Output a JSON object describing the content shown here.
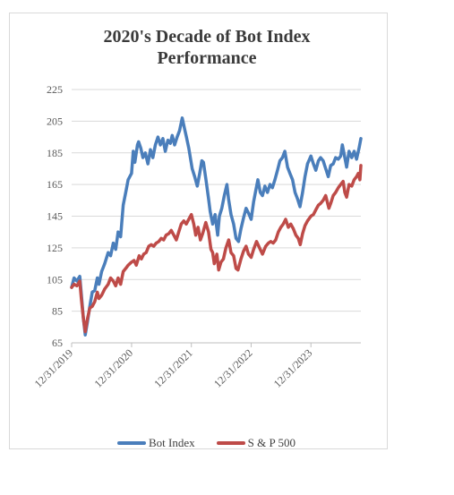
{
  "chart_data": {
    "type": "line",
    "title": "2020's Decade of Bot Index Performance",
    "title_lines": [
      "2020's Decade of Bot Index",
      "Performance"
    ],
    "xlabel": "",
    "ylabel": "",
    "y_ticks": [
      65,
      85,
      105,
      125,
      145,
      165,
      185,
      205,
      225
    ],
    "ylim": [
      65,
      225
    ],
    "x_ticks": [
      "2019-12-31",
      "2020-12-31",
      "2021-12-31",
      "2022-12-31",
      "2023-12-31"
    ],
    "x_tick_labels": [
      "12/31/2019",
      "12/31/2020",
      "12/31/2021",
      "12/31/2022",
      "12/31/2023"
    ],
    "xlim": [
      "2019-12-31",
      "2024-10-31"
    ],
    "grid": true,
    "legend_position": "bottom",
    "series": [
      {
        "name": "Bot Index",
        "color": "#4a7ebb",
        "points": [
          [
            "2019-12-31",
            100
          ],
          [
            "2020-01-15",
            106
          ],
          [
            "2020-02-01",
            104
          ],
          [
            "2020-02-19",
            107
          ],
          [
            "2020-02-28",
            96
          ],
          [
            "2020-03-12",
            80
          ],
          [
            "2020-03-23",
            70
          ],
          [
            "2020-04-05",
            78
          ],
          [
            "2020-04-20",
            88
          ],
          [
            "2020-05-05",
            97
          ],
          [
            "2020-05-20",
            98
          ],
          [
            "2020-06-05",
            106
          ],
          [
            "2020-06-15",
            102
          ],
          [
            "2020-07-01",
            110
          ],
          [
            "2020-07-20",
            115
          ],
          [
            "2020-08-10",
            122
          ],
          [
            "2020-08-25",
            120
          ],
          [
            "2020-09-10",
            128
          ],
          [
            "2020-09-25",
            124
          ],
          [
            "2020-10-10",
            135
          ],
          [
            "2020-10-25",
            132
          ],
          [
            "2020-11-10",
            152
          ],
          [
            "2020-11-25",
            160
          ],
          [
            "2020-12-10",
            168
          ],
          [
            "2020-12-31",
            172
          ],
          [
            "2021-01-10",
            186
          ],
          [
            "2021-01-20",
            179
          ],
          [
            "2021-02-05",
            190
          ],
          [
            "2021-02-12",
            192
          ],
          [
            "2021-02-25",
            188
          ],
          [
            "2021-03-10",
            182
          ],
          [
            "2021-03-25",
            185
          ],
          [
            "2021-04-10",
            178
          ],
          [
            "2021-04-25",
            187
          ],
          [
            "2021-05-10",
            182
          ],
          [
            "2021-05-25",
            190
          ],
          [
            "2021-06-10",
            195
          ],
          [
            "2021-06-25",
            190
          ],
          [
            "2021-07-10",
            194
          ],
          [
            "2021-07-25",
            186
          ],
          [
            "2021-08-10",
            193
          ],
          [
            "2021-08-25",
            191
          ],
          [
            "2021-09-05",
            196
          ],
          [
            "2021-09-20",
            190
          ],
          [
            "2021-10-05",
            195
          ],
          [
            "2021-10-20",
            199
          ],
          [
            "2021-11-05",
            207
          ],
          [
            "2021-11-20",
            200
          ],
          [
            "2021-12-01",
            195
          ],
          [
            "2021-12-15",
            188
          ],
          [
            "2022-01-05",
            175
          ],
          [
            "2022-01-20",
            170
          ],
          [
            "2022-02-05",
            164
          ],
          [
            "2022-02-20",
            172
          ],
          [
            "2022-03-05",
            180
          ],
          [
            "2022-03-15",
            179
          ],
          [
            "2022-03-30",
            168
          ],
          [
            "2022-04-15",
            156
          ],
          [
            "2022-04-25",
            148
          ],
          [
            "2022-05-10",
            140
          ],
          [
            "2022-05-25",
            146
          ],
          [
            "2022-06-10",
            133
          ],
          [
            "2022-06-20",
            145
          ],
          [
            "2022-07-05",
            150
          ],
          [
            "2022-07-20",
            158
          ],
          [
            "2022-08-05",
            165
          ],
          [
            "2022-08-15",
            156
          ],
          [
            "2022-08-30",
            146
          ],
          [
            "2022-09-15",
            140
          ],
          [
            "2022-09-30",
            131
          ],
          [
            "2022-10-15",
            129
          ],
          [
            "2022-10-30",
            137
          ],
          [
            "2022-11-15",
            144
          ],
          [
            "2022-11-30",
            150
          ],
          [
            "2022-12-15",
            147
          ],
          [
            "2022-12-31",
            143
          ],
          [
            "2023-01-15",
            154
          ],
          [
            "2023-01-30",
            162
          ],
          [
            "2023-02-10",
            168
          ],
          [
            "2023-02-25",
            160
          ],
          [
            "2023-03-10",
            158
          ],
          [
            "2023-03-25",
            164
          ],
          [
            "2023-04-10",
            160
          ],
          [
            "2023-04-25",
            165
          ],
          [
            "2023-05-10",
            163
          ],
          [
            "2023-05-25",
            168
          ],
          [
            "2023-06-10",
            174
          ],
          [
            "2023-06-25",
            180
          ],
          [
            "2023-07-10",
            182
          ],
          [
            "2023-07-25",
            186
          ],
          [
            "2023-08-10",
            176
          ],
          [
            "2023-08-25",
            172
          ],
          [
            "2023-09-10",
            168
          ],
          [
            "2023-09-25",
            160
          ],
          [
            "2023-10-10",
            156
          ],
          [
            "2023-10-25",
            151
          ],
          [
            "2023-11-10",
            160
          ],
          [
            "2023-11-25",
            170
          ],
          [
            "2023-12-10",
            178
          ],
          [
            "2023-12-31",
            183
          ],
          [
            "2024-01-15",
            178
          ],
          [
            "2024-01-30",
            174
          ],
          [
            "2024-02-15",
            180
          ],
          [
            "2024-02-28",
            182
          ],
          [
            "2024-03-15",
            180
          ],
          [
            "2024-03-30",
            175
          ],
          [
            "2024-04-15",
            170
          ],
          [
            "2024-04-30",
            177
          ],
          [
            "2024-05-15",
            178
          ],
          [
            "2024-05-30",
            182
          ],
          [
            "2024-06-15",
            181
          ],
          [
            "2024-06-30",
            183
          ],
          [
            "2024-07-10",
            190
          ],
          [
            "2024-07-25",
            182
          ],
          [
            "2024-08-05",
            176
          ],
          [
            "2024-08-20",
            186
          ],
          [
            "2024-09-05",
            182
          ],
          [
            "2024-09-20",
            186
          ],
          [
            "2024-10-05",
            181
          ],
          [
            "2024-10-20",
            188
          ],
          [
            "2024-10-31",
            194
          ]
        ]
      },
      {
        "name": "S & P 500",
        "color": "#be4b48",
        "points": [
          [
            "2019-12-31",
            100
          ],
          [
            "2020-01-15",
            102
          ],
          [
            "2020-02-01",
            101
          ],
          [
            "2020-02-19",
            104
          ],
          [
            "2020-02-28",
            93
          ],
          [
            "2020-03-12",
            80
          ],
          [
            "2020-03-23",
            72
          ],
          [
            "2020-04-05",
            80
          ],
          [
            "2020-04-20",
            87
          ],
          [
            "2020-05-05",
            88
          ],
          [
            "2020-05-20",
            91
          ],
          [
            "2020-06-05",
            97
          ],
          [
            "2020-06-15",
            93
          ],
          [
            "2020-07-01",
            95
          ],
          [
            "2020-07-20",
            99
          ],
          [
            "2020-08-10",
            102
          ],
          [
            "2020-08-25",
            106
          ],
          [
            "2020-09-10",
            104
          ],
          [
            "2020-09-25",
            101
          ],
          [
            "2020-10-10",
            106
          ],
          [
            "2020-10-25",
            102
          ],
          [
            "2020-11-10",
            110
          ],
          [
            "2020-11-25",
            112
          ],
          [
            "2020-12-10",
            114
          ],
          [
            "2020-12-31",
            116
          ],
          [
            "2021-01-15",
            117
          ],
          [
            "2021-01-29",
            114
          ],
          [
            "2021-02-15",
            120
          ],
          [
            "2021-03-01",
            118
          ],
          [
            "2021-03-15",
            121
          ],
          [
            "2021-03-30",
            122
          ],
          [
            "2021-04-15",
            126
          ],
          [
            "2021-04-30",
            127
          ],
          [
            "2021-05-15",
            126
          ],
          [
            "2021-05-30",
            128
          ],
          [
            "2021-06-15",
            129
          ],
          [
            "2021-06-30",
            131
          ],
          [
            "2021-07-15",
            130
          ],
          [
            "2021-07-30",
            133
          ],
          [
            "2021-08-15",
            134
          ],
          [
            "2021-08-30",
            136
          ],
          [
            "2021-09-15",
            133
          ],
          [
            "2021-09-30",
            130
          ],
          [
            "2021-10-15",
            135
          ],
          [
            "2021-10-30",
            140
          ],
          [
            "2021-11-15",
            142
          ],
          [
            "2021-11-30",
            140
          ],
          [
            "2021-12-15",
            143
          ],
          [
            "2021-12-31",
            146
          ],
          [
            "2022-01-15",
            140
          ],
          [
            "2022-01-27",
            133
          ],
          [
            "2022-02-10",
            138
          ],
          [
            "2022-02-24",
            130
          ],
          [
            "2022-03-10",
            134
          ],
          [
            "2022-03-29",
            141
          ],
          [
            "2022-04-15",
            135
          ],
          [
            "2022-04-30",
            124
          ],
          [
            "2022-05-10",
            122
          ],
          [
            "2022-05-20",
            115
          ],
          [
            "2022-06-05",
            121
          ],
          [
            "2022-06-16",
            111
          ],
          [
            "2022-06-30",
            116
          ],
          [
            "2022-07-15",
            118
          ],
          [
            "2022-07-30",
            125
          ],
          [
            "2022-08-16",
            130
          ],
          [
            "2022-08-30",
            122
          ],
          [
            "2022-09-15",
            120
          ],
          [
            "2022-09-30",
            112
          ],
          [
            "2022-10-12",
            111
          ],
          [
            "2022-10-30",
            118
          ],
          [
            "2022-11-15",
            123
          ],
          [
            "2022-11-30",
            126
          ],
          [
            "2022-12-15",
            121
          ],
          [
            "2022-12-31",
            119
          ],
          [
            "2023-01-15",
            124
          ],
          [
            "2023-02-02",
            129
          ],
          [
            "2023-02-20",
            125
          ],
          [
            "2023-03-10",
            121
          ],
          [
            "2023-03-30",
            126
          ],
          [
            "2023-04-15",
            128
          ],
          [
            "2023-04-30",
            129
          ],
          [
            "2023-05-15",
            128
          ],
          [
            "2023-05-30",
            130
          ],
          [
            "2023-06-15",
            135
          ],
          [
            "2023-06-30",
            138
          ],
          [
            "2023-07-15",
            140
          ],
          [
            "2023-07-30",
            143
          ],
          [
            "2023-08-15",
            138
          ],
          [
            "2023-08-30",
            140
          ],
          [
            "2023-09-15",
            137
          ],
          [
            "2023-09-30",
            133
          ],
          [
            "2023-10-15",
            131
          ],
          [
            "2023-10-27",
            127
          ],
          [
            "2023-11-10",
            134
          ],
          [
            "2023-11-25",
            139
          ],
          [
            "2023-12-10",
            142
          ],
          [
            "2023-12-31",
            145
          ],
          [
            "2024-01-15",
            146
          ],
          [
            "2024-01-30",
            149
          ],
          [
            "2024-02-15",
            152
          ],
          [
            "2024-02-28",
            153
          ],
          [
            "2024-03-15",
            155
          ],
          [
            "2024-03-30",
            158
          ],
          [
            "2024-04-19",
            150
          ],
          [
            "2024-04-30",
            153
          ],
          [
            "2024-05-15",
            158
          ],
          [
            "2024-05-30",
            160
          ],
          [
            "2024-06-15",
            163
          ],
          [
            "2024-06-30",
            165
          ],
          [
            "2024-07-15",
            167
          ],
          [
            "2024-07-25",
            160
          ],
          [
            "2024-08-05",
            157
          ],
          [
            "2024-08-20",
            165
          ],
          [
            "2024-09-05",
            164
          ],
          [
            "2024-09-20",
            168
          ],
          [
            "2024-10-05",
            170
          ],
          [
            "2024-10-15",
            172
          ],
          [
            "2024-10-25",
            168
          ],
          [
            "2024-10-31",
            177
          ]
        ]
      }
    ]
  }
}
